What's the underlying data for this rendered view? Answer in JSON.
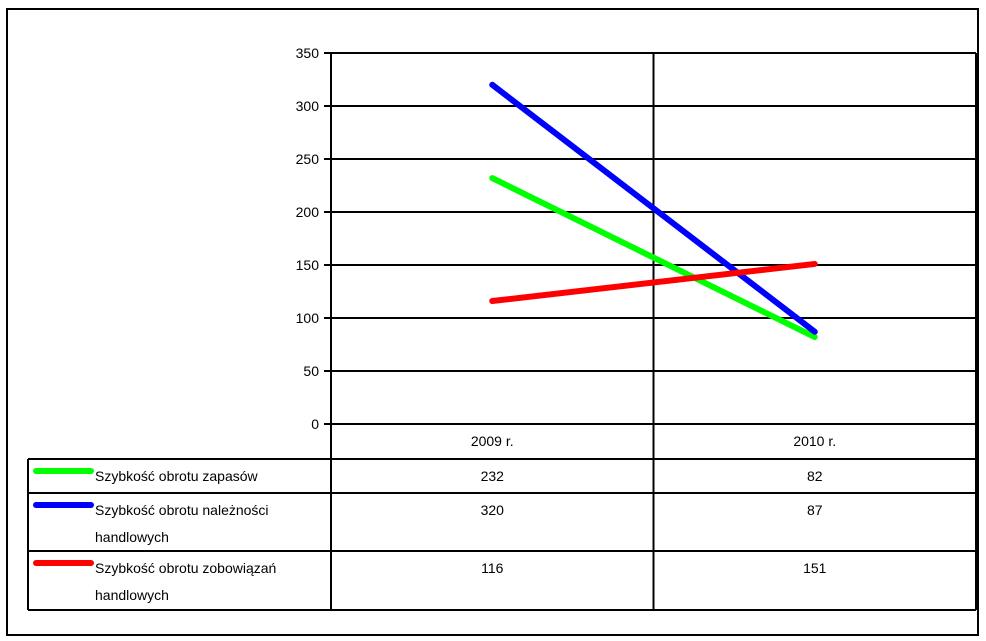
{
  "chart_data": {
    "type": "line",
    "categories": [
      "2009 r.",
      "2010 r."
    ],
    "ylim": [
      0,
      350
    ],
    "yticks": [
      0,
      50,
      100,
      150,
      200,
      250,
      300,
      350
    ],
    "grid": true,
    "legend": "data-table-below",
    "series": [
      {
        "name": "Szybkość obrotu zapasów",
        "name_lines": [
          "Szybkość obrotu zapasów"
        ],
        "values": [
          232,
          82
        ],
        "color": "#00ff00"
      },
      {
        "name": "Szybkość obrotu należności handlowych",
        "name_lines": [
          "Szybkość obrotu należności",
          "handlowych"
        ],
        "values": [
          320,
          87
        ],
        "color": "#0000ff"
      },
      {
        "name": "Szybkość obrotu zobowiązań handlowych",
        "name_lines": [
          "Szybkość obrotu zobowiązań",
          "handlowych"
        ],
        "values": [
          116,
          151
        ],
        "color": "#ff0000"
      }
    ]
  }
}
